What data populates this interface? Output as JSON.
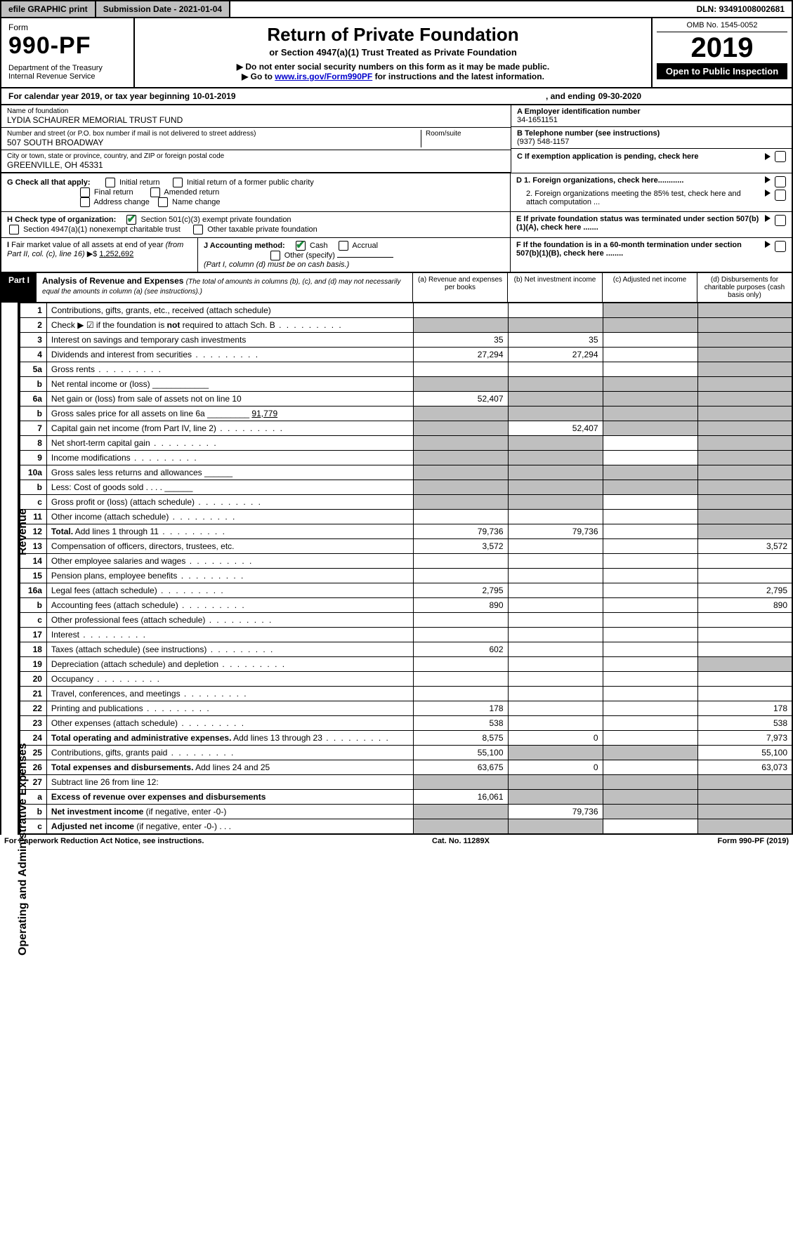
{
  "topbar": {
    "efile": "efile GRAPHIC print",
    "submission": "Submission Date - 2021-01-04",
    "dln": "DLN: 93491008002681"
  },
  "header": {
    "form_word": "Form",
    "form_num": "990-PF",
    "dept": "Department of the Treasury\nInternal Revenue Service",
    "title": "Return of Private Foundation",
    "subtitle": "or Section 4947(a)(1) Trust Treated as Private Foundation",
    "notice1": "▶ Do not enter social security numbers on this form as it may be made public.",
    "notice2_pre": "▶ Go to ",
    "notice2_link": "www.irs.gov/Form990PF",
    "notice2_post": " for instructions and the latest information.",
    "omb": "OMB No. 1545-0052",
    "year": "2019",
    "open": "Open to Public Inspection"
  },
  "calendar": {
    "pre": "For calendar year 2019, or tax year beginning ",
    "begin": "10-01-2019",
    "mid": ", and ending ",
    "end": "09-30-2020"
  },
  "foundation": {
    "name_label": "Name of foundation",
    "name": "LYDIA SCHAURER MEMORIAL TRUST FUND",
    "ein_label": "A Employer identification number",
    "ein": "34-1651151",
    "addr_label": "Number and street (or P.O. box number if mail is not delivered to street address)",
    "addr": "507 SOUTH BROADWAY",
    "room_label": "Room/suite",
    "phone_label": "B Telephone number (see instructions)",
    "phone": "(937) 548-1157",
    "city_label": "City or town, state or province, country, and ZIP or foreign postal code",
    "city": "GREENVILLE, OH  45331",
    "c_label": "C If exemption application is pending, check here"
  },
  "checks": {
    "g_label": "G Check all that apply:",
    "g_opts": [
      "Initial return",
      "Initial return of a former public charity",
      "Final return",
      "Amended return",
      "Address change",
      "Name change"
    ],
    "h_label": "H Check type of organization:",
    "h_opts": [
      "Section 501(c)(3) exempt private foundation",
      "Section 4947(a)(1) nonexempt charitable trust",
      "Other taxable private foundation"
    ],
    "d1": "D 1. Foreign organizations, check here............",
    "d2": "2. Foreign organizations meeting the 85% test, check here and attach computation ...",
    "e": "E  If private foundation status was terminated under section 507(b)(1)(A), check here .......",
    "f": "F  If the foundation is in a 60-month termination under section 507(b)(1)(B), check here ........",
    "i_label": "I Fair market value of all assets at end of year (from Part II, col. (c), line 16) ▶$ ",
    "i_val": "1,252,692",
    "j_label": "J Accounting method:",
    "j_opts": [
      "Cash",
      "Accrual"
    ],
    "j_other": "Other (specify)",
    "j_note": "(Part I, column (d) must be on cash basis.)"
  },
  "part1": {
    "title": "Part I",
    "heading": "Analysis of Revenue and Expenses",
    "heading_note": "(The total of amounts in columns (b), (c), and (d) may not necessarily equal the amounts in column (a) (see instructions).)",
    "cols": {
      "a": "(a)   Revenue and expenses per books",
      "b": "(b)  Net investment income",
      "c": "(c)  Adjusted net income",
      "d": "(d)  Disbursements for charitable purposes (cash basis only)"
    }
  },
  "side_labels": {
    "revenue": "Revenue",
    "expenses": "Operating and Administrative Expenses"
  },
  "rows": [
    {
      "n": "1",
      "desc": "Contributions, gifts, grants, etc., received (attach schedule)",
      "a": "",
      "b": "",
      "c": "g",
      "d": "g"
    },
    {
      "n": "2",
      "desc": "Check ▶ ☑ if the foundation is <b>not</b> required to attach Sch. B",
      "dots": true,
      "a": "g",
      "b": "g",
      "c": "g",
      "d": "g"
    },
    {
      "n": "3",
      "desc": "Interest on savings and temporary cash investments",
      "a": "35",
      "b": "35",
      "c": "",
      "d": "g"
    },
    {
      "n": "4",
      "desc": "Dividends and interest from securities",
      "dots": true,
      "a": "27,294",
      "b": "27,294",
      "c": "",
      "d": "g"
    },
    {
      "n": "5a",
      "desc": "Gross rents",
      "dots": true,
      "a": "",
      "b": "",
      "c": "",
      "d": "g"
    },
    {
      "n": "b",
      "desc": "Net rental income or (loss)   ____________",
      "a": "g",
      "b": "g",
      "c": "g",
      "d": "g"
    },
    {
      "n": "6a",
      "desc": "Net gain or (loss) from sale of assets not on line 10",
      "a": "52,407",
      "b": "g",
      "c": "g",
      "d": "g"
    },
    {
      "n": "b",
      "desc": "Gross sales price for all assets on line 6a _________ <u>91,779</u>",
      "a": "g",
      "b": "g",
      "c": "g",
      "d": "g"
    },
    {
      "n": "7",
      "desc": "Capital gain net income (from Part IV, line 2)",
      "dots": true,
      "a": "g",
      "b": "52,407",
      "c": "g",
      "d": "g"
    },
    {
      "n": "8",
      "desc": "Net short-term capital gain",
      "dots": true,
      "a": "g",
      "b": "g",
      "c": "",
      "d": "g"
    },
    {
      "n": "9",
      "desc": "Income modifications",
      "dots": true,
      "a": "g",
      "b": "g",
      "c": "",
      "d": "g"
    },
    {
      "n": "10a",
      "desc": "Gross sales less returns and allowances  ______",
      "a": "g",
      "b": "g",
      "c": "g",
      "d": "g"
    },
    {
      "n": "b",
      "desc": "Less: Cost of goods sold    .   .   .   .   ______",
      "a": "g",
      "b": "g",
      "c": "g",
      "d": "g"
    },
    {
      "n": "c",
      "desc": "Gross profit or (loss) (attach schedule)",
      "dots": true,
      "a": "g",
      "b": "g",
      "c": "",
      "d": "g"
    },
    {
      "n": "11",
      "desc": "Other income (attach schedule)",
      "dots": true,
      "a": "",
      "b": "",
      "c": "",
      "d": "g"
    },
    {
      "n": "12",
      "desc": "<b>Total.</b> Add lines 1 through 11",
      "dots": true,
      "a": "79,736",
      "b": "79,736",
      "c": "",
      "d": "g"
    },
    {
      "n": "13",
      "desc": "Compensation of officers, directors, trustees, etc.",
      "a": "3,572",
      "b": "",
      "c": "",
      "d": "3,572"
    },
    {
      "n": "14",
      "desc": "Other employee salaries and wages",
      "dots": true,
      "a": "",
      "b": "",
      "c": "",
      "d": ""
    },
    {
      "n": "15",
      "desc": "Pension plans, employee benefits",
      "dots": true,
      "a": "",
      "b": "",
      "c": "",
      "d": ""
    },
    {
      "n": "16a",
      "desc": "Legal fees (attach schedule)",
      "dots": true,
      "a": "2,795",
      "b": "",
      "c": "",
      "d": "2,795"
    },
    {
      "n": "b",
      "desc": "Accounting fees (attach schedule)",
      "dots": true,
      "a": "890",
      "b": "",
      "c": "",
      "d": "890"
    },
    {
      "n": "c",
      "desc": "Other professional fees (attach schedule)",
      "dots": true,
      "a": "",
      "b": "",
      "c": "",
      "d": ""
    },
    {
      "n": "17",
      "desc": "Interest",
      "dots": true,
      "a": "",
      "b": "",
      "c": "",
      "d": ""
    },
    {
      "n": "18",
      "desc": "Taxes (attach schedule) (see instructions)",
      "dots": true,
      "a": "602",
      "b": "",
      "c": "",
      "d": ""
    },
    {
      "n": "19",
      "desc": "Depreciation (attach schedule) and depletion",
      "dots": true,
      "a": "",
      "b": "",
      "c": "",
      "d": "g"
    },
    {
      "n": "20",
      "desc": "Occupancy",
      "dots": true,
      "a": "",
      "b": "",
      "c": "",
      "d": ""
    },
    {
      "n": "21",
      "desc": "Travel, conferences, and meetings",
      "dots": true,
      "a": "",
      "b": "",
      "c": "",
      "d": ""
    },
    {
      "n": "22",
      "desc": "Printing and publications",
      "dots": true,
      "a": "178",
      "b": "",
      "c": "",
      "d": "178"
    },
    {
      "n": "23",
      "desc": "Other expenses (attach schedule)",
      "dots": true,
      "a": "538",
      "b": "",
      "c": "",
      "d": "538"
    },
    {
      "n": "24",
      "desc": "<b>Total operating and administrative expenses.</b> Add lines 13 through 23",
      "dots": true,
      "a": "8,575",
      "b": "0",
      "c": "",
      "d": "7,973"
    },
    {
      "n": "25",
      "desc": "Contributions, gifts, grants paid",
      "dots": true,
      "a": "55,100",
      "b": "g",
      "c": "g",
      "d": "55,100"
    },
    {
      "n": "26",
      "desc": "<b>Total expenses and disbursements.</b> Add lines 24 and 25",
      "a": "63,675",
      "b": "0",
      "c": "",
      "d": "63,073"
    },
    {
      "n": "27",
      "desc": "Subtract line 26 from line 12:",
      "a": "g",
      "b": "g",
      "c": "g",
      "d": "g"
    },
    {
      "n": "a",
      "desc": "<b>Excess of revenue over expenses and disbursements</b>",
      "a": "16,061",
      "b": "g",
      "c": "g",
      "d": "g"
    },
    {
      "n": "b",
      "desc": "<b>Net investment income</b> (if negative, enter -0-)",
      "a": "g",
      "b": "79,736",
      "c": "g",
      "d": "g"
    },
    {
      "n": "c",
      "desc": "<b>Adjusted net income</b> (if negative, enter -0-)   .   .   .",
      "a": "g",
      "b": "g",
      "c": "",
      "d": "g"
    }
  ],
  "footer": {
    "left": "For Paperwork Reduction Act Notice, see instructions.",
    "mid": "Cat. No. 11289X",
    "right": "Form 990-PF (2019)"
  }
}
